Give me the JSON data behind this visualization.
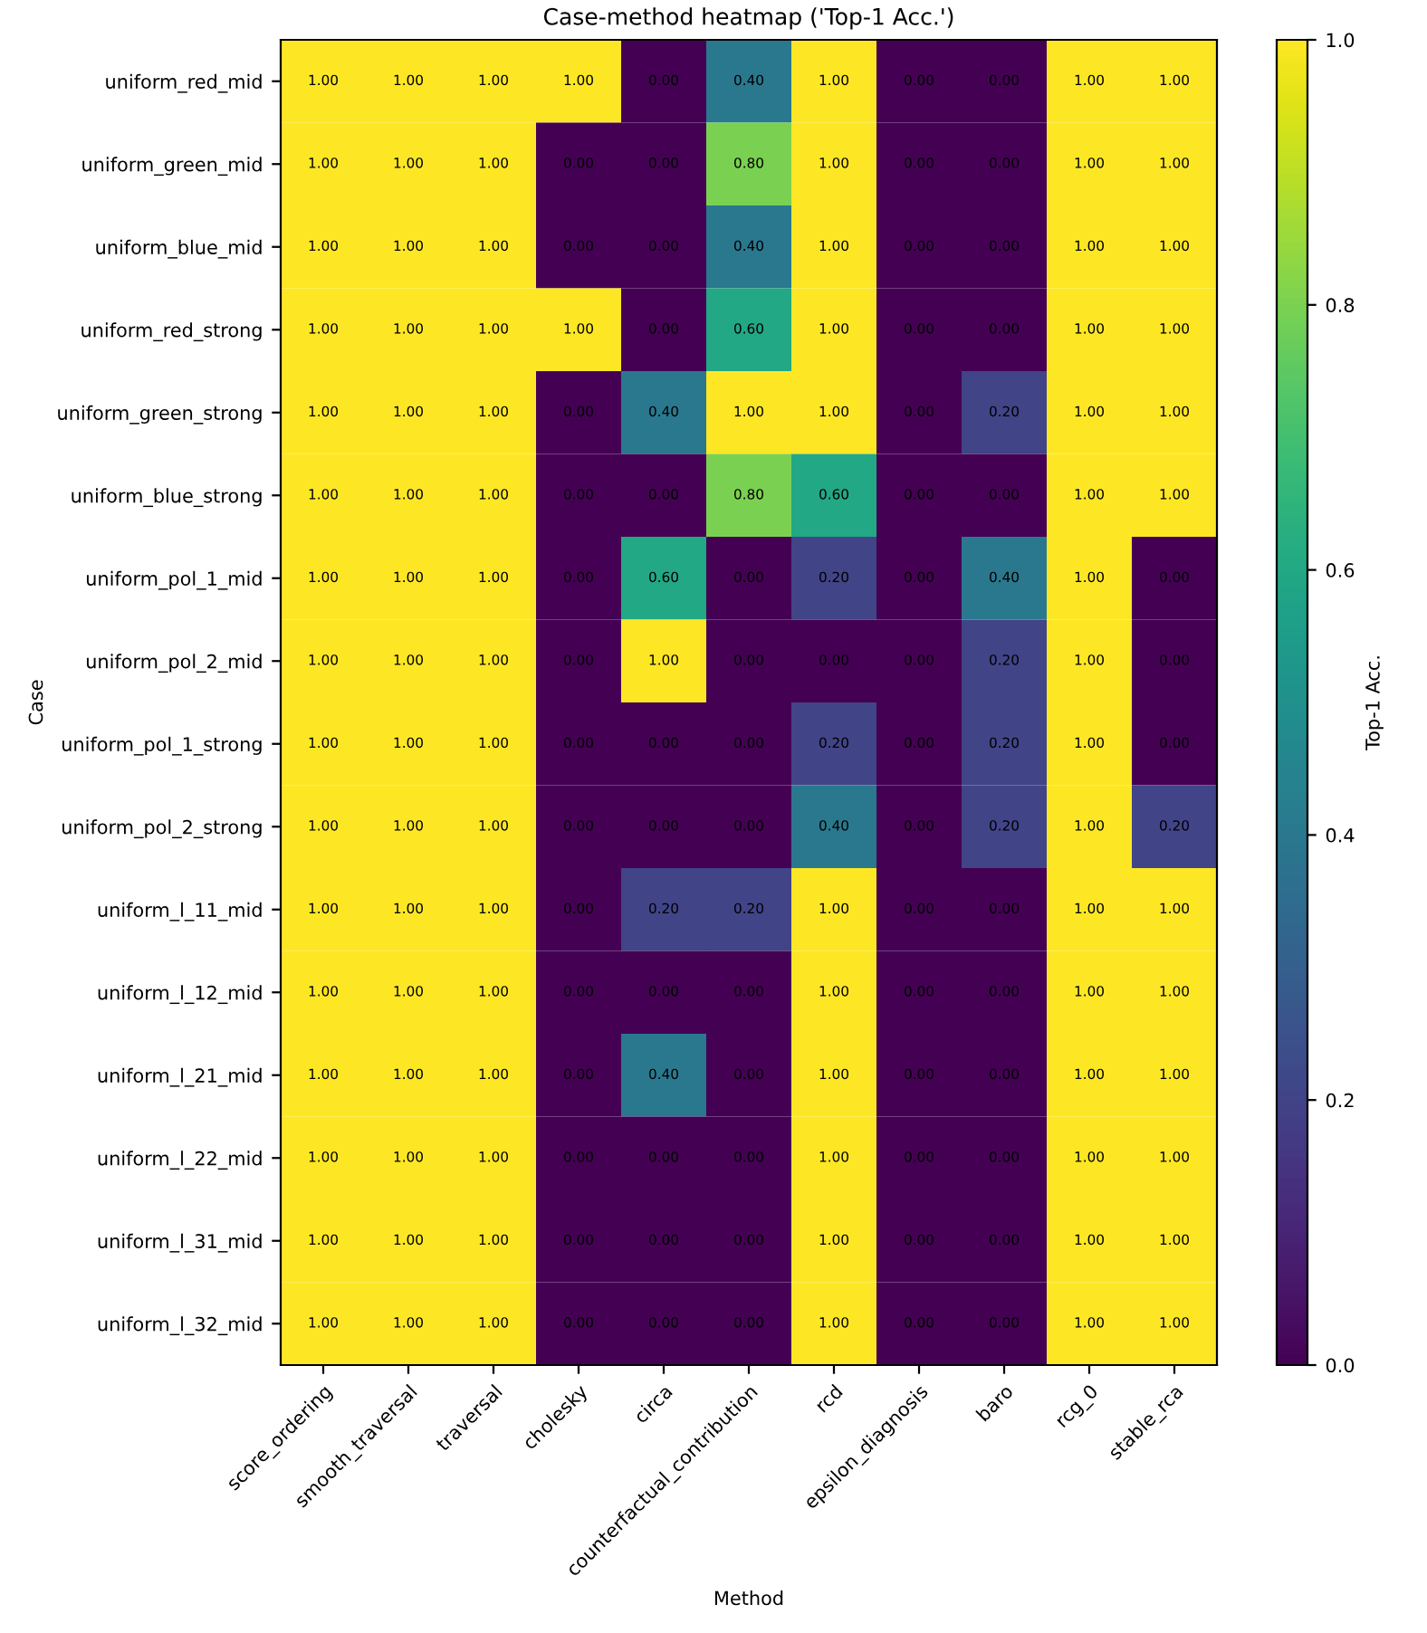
{
  "chart_data": {
    "type": "heatmap",
    "title": "Case-method heatmap ('Top-1 Acc.')",
    "xlabel": "Method",
    "ylabel": "Case",
    "clabel": "Top-1 Acc.",
    "categories": [
      "score_ordering",
      "smooth_traversal",
      "traversal",
      "cholesky",
      "circa",
      "counterfactual_contribution",
      "rcd",
      "epsilon_diagnosis",
      "baro",
      "rcg_0",
      "stable_rca"
    ],
    "y_categories": [
      "uniform_red_mid",
      "uniform_green_mid",
      "uniform_blue_mid",
      "uniform_red_strong",
      "uniform_green_strong",
      "uniform_blue_strong",
      "uniform_pol_1_mid",
      "uniform_pol_2_mid",
      "uniform_pol_1_strong",
      "uniform_pol_2_strong",
      "uniform_l_11_mid",
      "uniform_l_12_mid",
      "uniform_l_21_mid",
      "uniform_l_22_mid",
      "uniform_l_31_mid",
      "uniform_l_32_mid"
    ],
    "cells": [
      [
        1,
        1,
        1,
        1,
        0,
        0.4,
        1,
        0,
        0,
        1,
        1
      ],
      [
        1,
        1,
        1,
        0,
        0,
        0.8,
        1,
        0,
        0,
        1,
        1
      ],
      [
        1,
        1,
        1,
        0,
        0,
        0.4,
        1,
        0,
        0,
        1,
        1
      ],
      [
        1,
        1,
        1,
        1,
        0,
        0.6,
        1,
        0,
        0,
        1,
        1
      ],
      [
        1,
        1,
        1,
        0,
        0.4,
        1,
        1,
        0,
        0.2,
        1,
        1
      ],
      [
        1,
        1,
        1,
        0,
        0,
        0.8,
        0.6,
        0,
        0,
        1,
        1
      ],
      [
        1,
        1,
        1,
        0,
        0.6,
        0,
        0.2,
        0,
        0.4,
        1,
        0
      ],
      [
        1,
        1,
        1,
        0,
        1,
        0,
        0,
        0,
        0.2,
        1,
        0
      ],
      [
        1,
        1,
        1,
        0,
        0,
        0,
        0.2,
        0,
        0.2,
        1,
        0
      ],
      [
        1,
        1,
        1,
        0,
        0,
        0,
        0.4,
        0,
        0.2,
        1,
        0.2
      ],
      [
        1,
        1,
        1,
        0,
        0.2,
        0.2,
        1,
        0,
        0,
        1,
        1
      ],
      [
        1,
        1,
        1,
        0,
        0,
        0,
        1,
        0,
        0,
        1,
        1
      ],
      [
        1,
        1,
        1,
        0,
        0.4,
        0,
        1,
        0,
        0,
        1,
        1
      ],
      [
        1,
        1,
        1,
        0,
        0,
        0,
        1,
        0,
        0,
        1,
        1
      ],
      [
        1,
        1,
        1,
        0,
        0,
        0,
        1,
        0,
        0,
        1,
        1
      ],
      [
        1,
        1,
        1,
        0,
        0,
        0,
        1,
        0,
        0,
        1,
        1
      ]
    ],
    "cell_labels": [
      [
        "1.00",
        "1.00",
        "1.00",
        "1.00",
        "0.00",
        "0.40",
        "1.00",
        "0.00",
        "0.00",
        "1.00",
        "1.00"
      ],
      [
        "1.00",
        "1.00",
        "1.00",
        "0.00",
        "0.00",
        "0.80",
        "1.00",
        "0.00",
        "0.00",
        "1.00",
        "1.00"
      ],
      [
        "1.00",
        "1.00",
        "1.00",
        "0.00",
        "0.00",
        "0.40",
        "1.00",
        "0.00",
        "0.00",
        "1.00",
        "1.00"
      ],
      [
        "1.00",
        "1.00",
        "1.00",
        "1.00",
        "0.00",
        "0.60",
        "1.00",
        "0.00",
        "0.00",
        "1.00",
        "1.00"
      ],
      [
        "1.00",
        "1.00",
        "1.00",
        "0.00",
        "0.40",
        "1.00",
        "1.00",
        "0.00",
        "0.20",
        "1.00",
        "1.00"
      ],
      [
        "1.00",
        "1.00",
        "1.00",
        "0.00",
        "0.00",
        "0.80",
        "0.60",
        "0.00",
        "0.00",
        "1.00",
        "1.00"
      ],
      [
        "1.00",
        "1.00",
        "1.00",
        "0.00",
        "0.60",
        "0.00",
        "0.20",
        "0.00",
        "0.40",
        "1.00",
        "0.00"
      ],
      [
        "1.00",
        "1.00",
        "1.00",
        "0.00",
        "1.00",
        "0.00",
        "0.00",
        "0.00",
        "0.20",
        "1.00",
        "0.00"
      ],
      [
        "1.00",
        "1.00",
        "1.00",
        "0.00",
        "0.00",
        "0.00",
        "0.20",
        "0.00",
        "0.20",
        "1.00",
        "0.00"
      ],
      [
        "1.00",
        "1.00",
        "1.00",
        "0.00",
        "0.00",
        "0.00",
        "0.40",
        "0.00",
        "0.20",
        "1.00",
        "0.20"
      ],
      [
        "1.00",
        "1.00",
        "1.00",
        "0.00",
        "0.20",
        "0.20",
        "1.00",
        "0.00",
        "0.00",
        "1.00",
        "1.00"
      ],
      [
        "1.00",
        "1.00",
        "1.00",
        "0.00",
        "0.00",
        "0.00",
        "1.00",
        "0.00",
        "0.00",
        "1.00",
        "1.00"
      ],
      [
        "1.00",
        "1.00",
        "1.00",
        "0.00",
        "0.40",
        "0.00",
        "1.00",
        "0.00",
        "0.00",
        "1.00",
        "1.00"
      ],
      [
        "1.00",
        "1.00",
        "1.00",
        "0.00",
        "0.00",
        "0.00",
        "1.00",
        "0.00",
        "0.00",
        "1.00",
        "1.00"
      ],
      [
        "1.00",
        "1.00",
        "1.00",
        "0.00",
        "0.00",
        "0.00",
        "1.00",
        "0.00",
        "0.00",
        "1.00",
        "1.00"
      ],
      [
        "1.00",
        "1.00",
        "1.00",
        "0.00",
        "0.00",
        "0.00",
        "1.00",
        "0.00",
        "0.00",
        "1.00",
        "1.00"
      ]
    ],
    "clim": [
      0,
      1
    ],
    "cticks": [
      {
        "value": 0,
        "label": "0.0"
      },
      {
        "value": 0.2,
        "label": "0.2"
      },
      {
        "value": 0.4,
        "label": "0.4"
      },
      {
        "value": 0.6,
        "label": "0.6"
      },
      {
        "value": 0.8,
        "label": "0.8"
      },
      {
        "value": 1,
        "label": "1.0"
      }
    ]
  }
}
